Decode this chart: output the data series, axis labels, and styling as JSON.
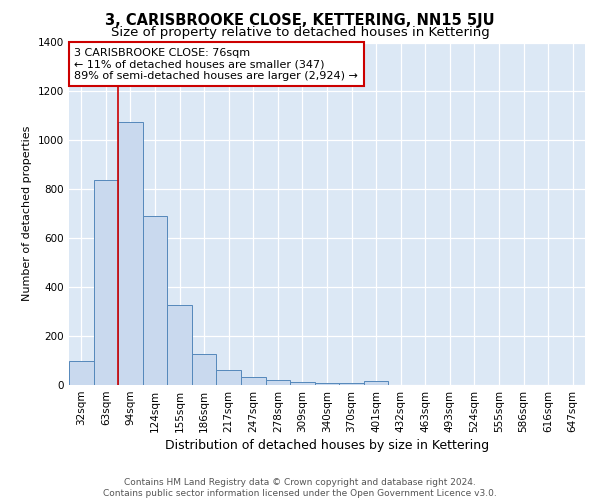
{
  "title": "3, CARISBROOKE CLOSE, KETTERING, NN15 5JU",
  "subtitle": "Size of property relative to detached houses in Kettering",
  "xlabel": "Distribution of detached houses by size in Kettering",
  "ylabel": "Number of detached properties",
  "categories": [
    "32sqm",
    "63sqm",
    "94sqm",
    "124sqm",
    "155sqm",
    "186sqm",
    "217sqm",
    "247sqm",
    "278sqm",
    "309sqm",
    "340sqm",
    "370sqm",
    "401sqm",
    "432sqm",
    "463sqm",
    "493sqm",
    "524sqm",
    "555sqm",
    "586sqm",
    "616sqm",
    "647sqm"
  ],
  "values": [
    100,
    840,
    1075,
    690,
    328,
    125,
    60,
    33,
    22,
    14,
    10,
    8,
    18,
    0,
    0,
    0,
    0,
    0,
    0,
    0,
    0
  ],
  "bar_color": "#c9d9ee",
  "bar_edge_color": "#5588bb",
  "fig_background_color": "#ffffff",
  "plot_background_color": "#dce8f5",
  "grid_color": "#ffffff",
  "vline_x_index": 1.5,
  "vline_color": "#cc0000",
  "annotation_text": "3 CARISBROOKE CLOSE: 76sqm\n← 11% of detached houses are smaller (347)\n89% of semi-detached houses are larger (2,924) →",
  "annotation_box_facecolor": "#ffffff",
  "annotation_box_edgecolor": "#cc0000",
  "ylim": [
    0,
    1400
  ],
  "yticks": [
    0,
    200,
    400,
    600,
    800,
    1000,
    1200,
    1400
  ],
  "footer": "Contains HM Land Registry data © Crown copyright and database right 2024.\nContains public sector information licensed under the Open Government Licence v3.0.",
  "title_fontsize": 10.5,
  "subtitle_fontsize": 9.5,
  "xlabel_fontsize": 9,
  "ylabel_fontsize": 8,
  "tick_fontsize": 7.5,
  "annotation_fontsize": 8,
  "footer_fontsize": 6.5
}
